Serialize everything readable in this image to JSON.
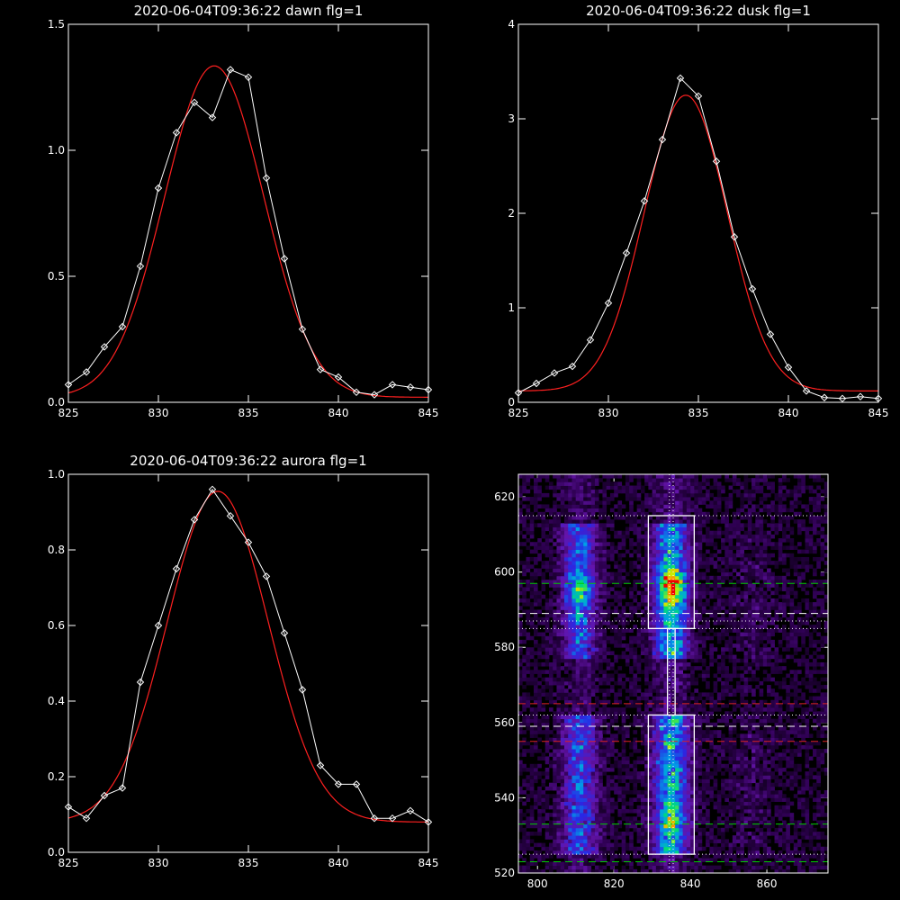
{
  "chart_data": [
    {
      "type": "line",
      "title": "2020-06-04T09:36:22 dawn flg=1",
      "xlim": [
        825,
        845
      ],
      "ylim": [
        0,
        1.5
      ],
      "xticks": [
        "825",
        "830",
        "835",
        "840",
        "845"
      ],
      "yticks": [
        "0.0",
        "0.5",
        "1.0",
        "1.5"
      ],
      "series": [
        {
          "x": [
            825,
            826,
            827,
            828,
            829,
            830,
            831,
            832,
            833,
            834,
            835,
            836,
            837,
            838,
            839,
            840,
            841,
            842,
            843,
            844,
            845
          ],
          "y": [
            0.07,
            0.12,
            0.22,
            0.3,
            0.54,
            0.85,
            1.07,
            1.19,
            1.13,
            1.32,
            1.29,
            0.89,
            0.57,
            0.29,
            0.13,
            0.1,
            0.04,
            0.03,
            0.07,
            0.06,
            0.05
          ]
        },
        {
          "fit": {
            "amp": 1.315,
            "center": 833.1,
            "sigma": 2.75,
            "offset": 0.02
          }
        }
      ]
    },
    {
      "type": "line",
      "title": "2020-06-04T09:36:22 dusk flg=1",
      "xlim": [
        825,
        845
      ],
      "ylim": [
        0,
        4
      ],
      "xticks": [
        "825",
        "830",
        "835",
        "840",
        "845"
      ],
      "yticks": [
        "0",
        "1",
        "2",
        "3",
        "4"
      ],
      "series": [
        {
          "x": [
            825,
            826,
            827,
            828,
            829,
            830,
            831,
            832,
            833,
            834,
            835,
            836,
            837,
            838,
            839,
            840,
            841,
            842,
            843,
            844,
            845
          ],
          "y": [
            0.1,
            0.2,
            0.31,
            0.38,
            0.66,
            1.05,
            1.58,
            2.13,
            2.78,
            3.43,
            3.24,
            2.55,
            1.75,
            1.2,
            0.72,
            0.37,
            0.12,
            0.05,
            0.04,
            0.06,
            0.04
          ]
        },
        {
          "fit": {
            "amp": 3.13,
            "center": 834.3,
            "sigma": 2.3,
            "offset": 0.12
          }
        }
      ]
    },
    {
      "type": "line",
      "title": "2020-06-04T09:36:22 aurora flg=1",
      "xlim": [
        825,
        845
      ],
      "ylim": [
        0,
        1.0
      ],
      "xticks": [
        "825",
        "830",
        "835",
        "840",
        "845"
      ],
      "yticks": [
        "0.0",
        "0.2",
        "0.4",
        "0.6",
        "0.8",
        "1.0"
      ],
      "series": [
        {
          "x": [
            825,
            826,
            827,
            828,
            829,
            830,
            831,
            832,
            833,
            834,
            835,
            836,
            837,
            838,
            839,
            840,
            841,
            842,
            843,
            844,
            845
          ],
          "y": [
            0.12,
            0.09,
            0.15,
            0.17,
            0.45,
            0.6,
            0.75,
            0.88,
            0.96,
            0.89,
            0.82,
            0.73,
            0.58,
            0.43,
            0.23,
            0.18,
            0.18,
            0.09,
            0.09,
            0.11,
            0.08
          ]
        },
        {
          "fit": {
            "amp": 0.875,
            "center": 833.3,
            "sigma": 2.8,
            "offset": 0.08
          }
        }
      ]
    },
    {
      "type": "heatmap",
      "title": "",
      "xlim": [
        795,
        876
      ],
      "ylim": [
        520,
        626
      ],
      "xticks": [
        "800",
        "820",
        "840",
        "860"
      ],
      "yticks": [
        "520",
        "540",
        "560",
        "580",
        "600",
        "620"
      ],
      "boxes": [
        {
          "x": [
            829,
            841
          ],
          "y": [
            585,
            615
          ]
        },
        {
          "x": [
            829,
            841
          ],
          "y": [
            525,
            562
          ]
        }
      ],
      "connector": {
        "x": [
          834,
          836
        ],
        "y": [
          562,
          585
        ]
      },
      "vertical_dotted_lines_x": [
        834.5,
        835.5
      ],
      "horizontal_lines": [
        {
          "y": 615,
          "style": "dotted",
          "color": "#ffffff"
        },
        {
          "y": 597,
          "style": "dashed",
          "color": "#00cc00"
        },
        {
          "y": 589,
          "style": "dashed",
          "color": "#ffffff"
        },
        {
          "y": 587,
          "style": "dotted",
          "color": "#ffffff"
        },
        {
          "y": 585,
          "style": "dotted",
          "color": "#ffffff"
        },
        {
          "y": 565,
          "style": "dashed",
          "color": "#dd2222"
        },
        {
          "y": 562,
          "style": "dotted",
          "color": "#ffffff"
        },
        {
          "y": 559,
          "style": "dashed",
          "color": "#ffffff"
        },
        {
          "y": 555,
          "style": "dashed",
          "color": "#dd2222"
        },
        {
          "y": 533,
          "style": "dashed",
          "color": "#00cc00"
        },
        {
          "y": 525,
          "style": "dotted",
          "color": "#ffffff"
        },
        {
          "y": 523,
          "style": "dashed",
          "color": "#00cc00"
        }
      ]
    }
  ]
}
